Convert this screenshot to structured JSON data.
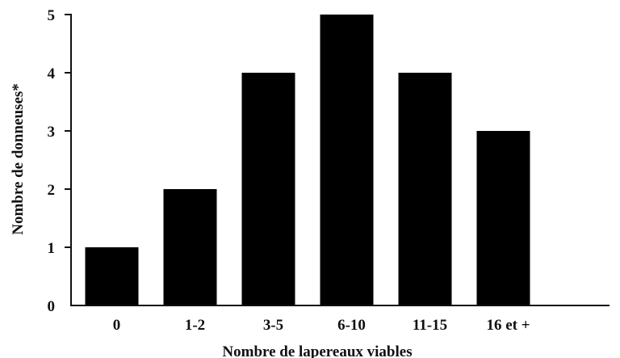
{
  "chart_data": {
    "type": "bar",
    "categories": [
      "0",
      "1-2",
      "3-5",
      "6-10",
      "11-15",
      "16 et +"
    ],
    "values": [
      1,
      2,
      4,
      5,
      4,
      3
    ],
    "title": "",
    "xlabel": "Nombre de lapereaux viables",
    "ylabel": "Nombre de donneuses*",
    "ylim": [
      0,
      5
    ],
    "yticks": [
      "0",
      "1",
      "2",
      "3",
      "4",
      "5"
    ],
    "grid": false,
    "legend": "none",
    "colors": {
      "bar": "#000000",
      "axis": "#111111"
    }
  }
}
